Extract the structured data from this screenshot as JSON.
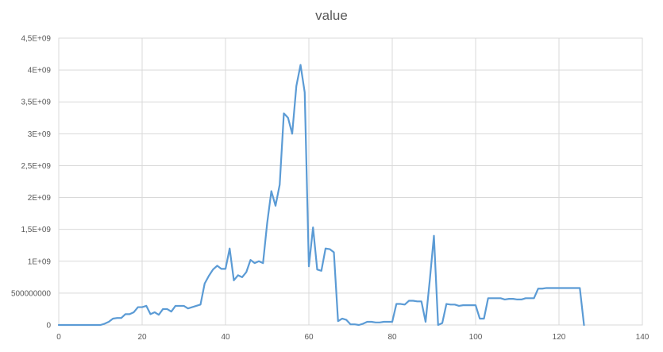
{
  "chart_data": {
    "type": "line",
    "title": "value",
    "xlabel": "",
    "ylabel": "",
    "xlim": [
      0,
      140
    ],
    "ylim": [
      0,
      4500000000
    ],
    "grid": true,
    "legend": "none",
    "x_ticks": [
      0,
      20,
      40,
      60,
      80,
      100,
      120,
      140
    ],
    "x_tick_labels": [
      "0",
      "20",
      "40",
      "60",
      "80",
      "100",
      "120",
      "140"
    ],
    "y_ticks": [
      0,
      500000000,
      1000000000,
      1500000000,
      2000000000,
      2500000000,
      3000000000,
      3500000000,
      4000000000,
      4500000000
    ],
    "y_tick_labels": [
      "0",
      "500000000",
      "1E+09",
      "1,5E+09",
      "2E+09",
      "2,5E+09",
      "3E+09",
      "3,5E+09",
      "4E+09",
      "4,5E+09"
    ],
    "colors": {
      "line": "#5b9bd5",
      "grid": "#d9d9d9",
      "text": "#595959"
    },
    "series": [
      {
        "values": [
          [
            0,
            0
          ],
          [
            1,
            0
          ],
          [
            2,
            0
          ],
          [
            3,
            0
          ],
          [
            4,
            0
          ],
          [
            5,
            0
          ],
          [
            6,
            0
          ],
          [
            7,
            0
          ],
          [
            8,
            0
          ],
          [
            9,
            0
          ],
          [
            10,
            0
          ],
          [
            11,
            20000000
          ],
          [
            12,
            50000000
          ],
          [
            13,
            100000000
          ],
          [
            14,
            110000000
          ],
          [
            15,
            110000000
          ],
          [
            16,
            170000000
          ],
          [
            17,
            170000000
          ],
          [
            18,
            200000000
          ],
          [
            19,
            280000000
          ],
          [
            20,
            280000000
          ],
          [
            21,
            300000000
          ],
          [
            22,
            170000000
          ],
          [
            23,
            200000000
          ],
          [
            24,
            160000000
          ],
          [
            25,
            250000000
          ],
          [
            26,
            250000000
          ],
          [
            27,
            210000000
          ],
          [
            28,
            300000000
          ],
          [
            29,
            300000000
          ],
          [
            30,
            300000000
          ],
          [
            31,
            260000000
          ],
          [
            32,
            280000000
          ],
          [
            33,
            300000000
          ],
          [
            34,
            320000000
          ],
          [
            35,
            650000000
          ],
          [
            36,
            770000000
          ],
          [
            37,
            870000000
          ],
          [
            38,
            930000000
          ],
          [
            39,
            880000000
          ],
          [
            40,
            880000000
          ],
          [
            41,
            1200000000
          ],
          [
            42,
            700000000
          ],
          [
            43,
            780000000
          ],
          [
            44,
            750000000
          ],
          [
            45,
            830000000
          ],
          [
            46,
            1020000000
          ],
          [
            47,
            970000000
          ],
          [
            48,
            1000000000
          ],
          [
            49,
            970000000
          ],
          [
            50,
            1600000000
          ],
          [
            51,
            2100000000
          ],
          [
            52,
            1870000000
          ],
          [
            53,
            2200000000
          ],
          [
            54,
            3320000000
          ],
          [
            55,
            3250000000
          ],
          [
            56,
            3000000000
          ],
          [
            57,
            3750000000
          ],
          [
            58,
            4080000000
          ],
          [
            59,
            3650000000
          ],
          [
            60,
            920000000
          ],
          [
            61,
            1530000000
          ],
          [
            62,
            870000000
          ],
          [
            63,
            850000000
          ],
          [
            64,
            1200000000
          ],
          [
            65,
            1190000000
          ],
          [
            66,
            1140000000
          ],
          [
            67,
            60000000
          ],
          [
            68,
            100000000
          ],
          [
            69,
            80000000
          ],
          [
            70,
            10000000
          ],
          [
            71,
            10000000
          ],
          [
            72,
            0
          ],
          [
            73,
            20000000
          ],
          [
            74,
            50000000
          ],
          [
            75,
            50000000
          ],
          [
            76,
            40000000
          ],
          [
            77,
            40000000
          ],
          [
            78,
            50000000
          ],
          [
            79,
            50000000
          ],
          [
            80,
            50000000
          ],
          [
            81,
            330000000
          ],
          [
            82,
            330000000
          ],
          [
            83,
            320000000
          ],
          [
            84,
            380000000
          ],
          [
            85,
            380000000
          ],
          [
            86,
            370000000
          ],
          [
            87,
            370000000
          ],
          [
            88,
            50000000
          ],
          [
            89,
            700000000
          ],
          [
            90,
            1400000000
          ],
          [
            91,
            0
          ],
          [
            92,
            30000000
          ],
          [
            93,
            330000000
          ],
          [
            94,
            320000000
          ],
          [
            95,
            320000000
          ],
          [
            96,
            300000000
          ],
          [
            97,
            310000000
          ],
          [
            98,
            310000000
          ],
          [
            99,
            310000000
          ],
          [
            100,
            310000000
          ],
          [
            101,
            100000000
          ],
          [
            102,
            100000000
          ],
          [
            103,
            420000000
          ],
          [
            104,
            420000000
          ],
          [
            105,
            420000000
          ],
          [
            106,
            420000000
          ],
          [
            107,
            400000000
          ],
          [
            108,
            410000000
          ],
          [
            109,
            410000000
          ],
          [
            110,
            400000000
          ],
          [
            111,
            400000000
          ],
          [
            112,
            420000000
          ],
          [
            113,
            420000000
          ],
          [
            114,
            420000000
          ],
          [
            115,
            570000000
          ],
          [
            116,
            570000000
          ],
          [
            117,
            580000000
          ],
          [
            118,
            580000000
          ],
          [
            119,
            580000000
          ],
          [
            120,
            580000000
          ],
          [
            121,
            580000000
          ],
          [
            122,
            580000000
          ],
          [
            123,
            580000000
          ],
          [
            124,
            580000000
          ],
          [
            125,
            580000000
          ],
          [
            126,
            0
          ]
        ]
      }
    ]
  }
}
